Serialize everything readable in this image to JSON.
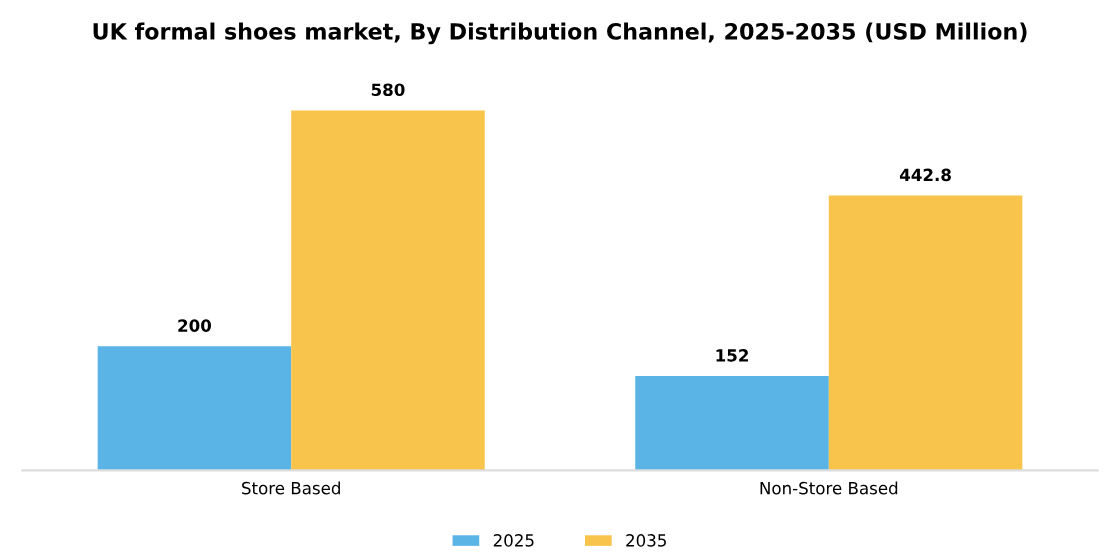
{
  "chart_data": {
    "type": "bar",
    "title": "UK formal shoes market, By Distribution Channel, 2025-2035 (USD Million)",
    "categories": [
      "Store Based",
      "Non-Store Based"
    ],
    "series": [
      {
        "name": "2025",
        "color": "#5ab4e6",
        "values": [
          200,
          152
        ]
      },
      {
        "name": "2035",
        "color": "#f8c44b",
        "values": [
          580,
          442.8
        ]
      }
    ],
    "data_labels": true,
    "legend": "bottom",
    "grid": false
  }
}
